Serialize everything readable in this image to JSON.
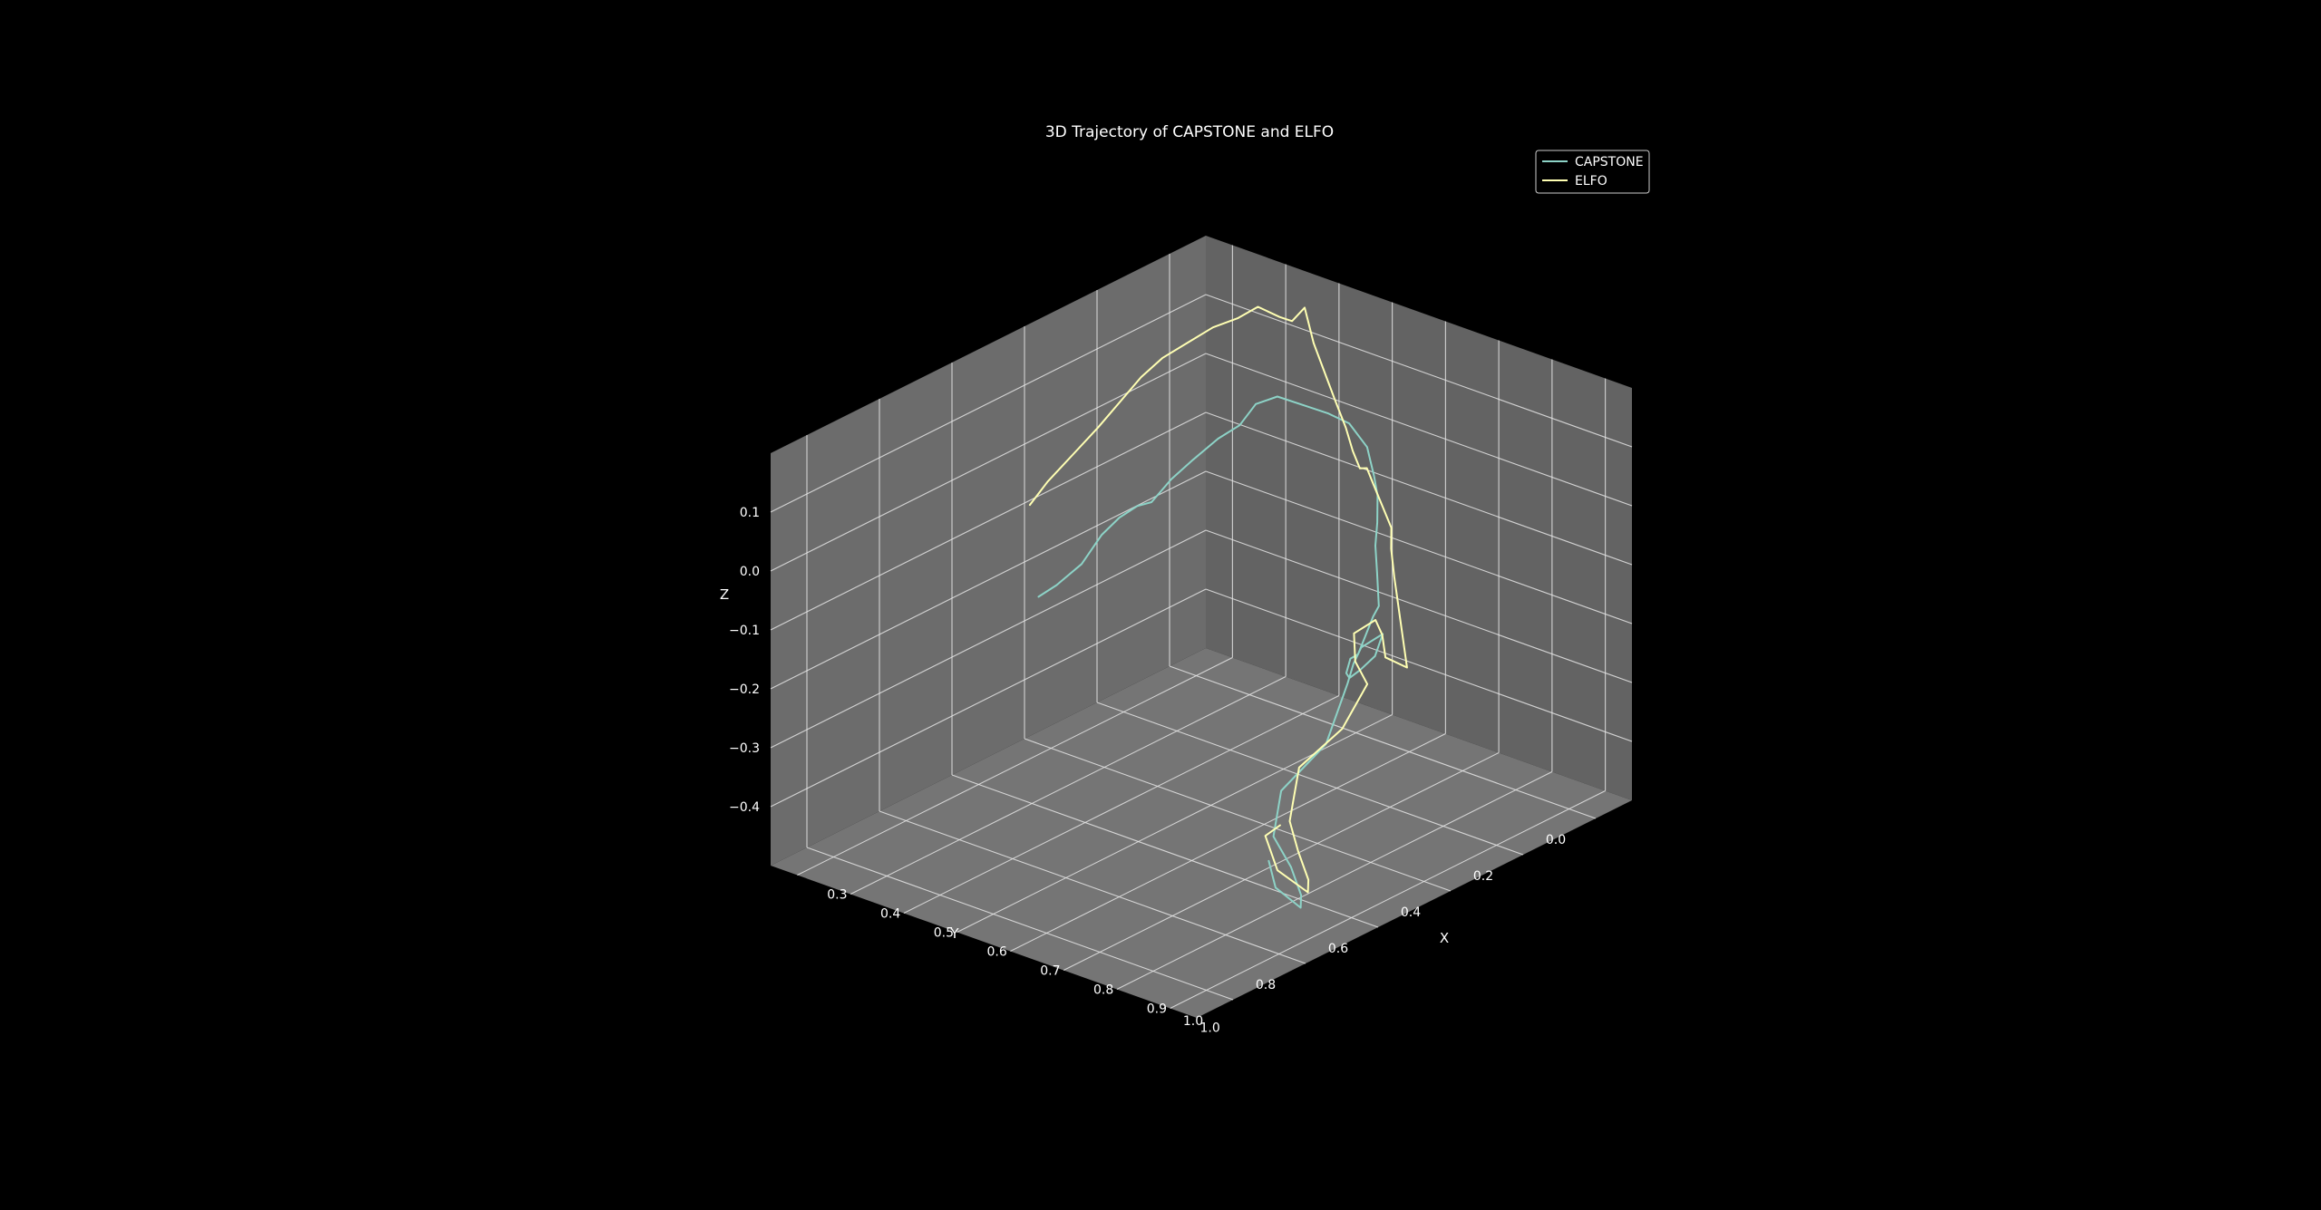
{
  "chart_data": {
    "type": "line",
    "title": "3D Trajectory of CAPSTONE and ELFO",
    "xlabel": "X",
    "ylabel": "Y",
    "zlabel": "Z",
    "xlim": [
      0.25,
      1.05
    ],
    "ylim": [
      -0.1,
      1.1
    ],
    "zlim": [
      -0.5,
      0.2
    ],
    "x_ticks": [
      "0.3",
      "0.4",
      "0.5",
      "0.6",
      "0.7",
      "0.8",
      "0.9",
      "1.0"
    ],
    "y_ticks": [
      "0.0",
      "0.2",
      "0.4",
      "0.6",
      "0.8",
      "1.0"
    ],
    "z_ticks": [
      "0.1",
      "0.0",
      "−0.1",
      "−0.2",
      "−0.3",
      "−0.4"
    ],
    "grid": true,
    "legend_position": "top-right",
    "background": "#000000",
    "pane_color": "#7f7f7f",
    "series": [
      {
        "name": "CAPSTONE",
        "color": "#8dd3c7",
        "points": [
          [
            0.29,
            0.42,
            -0.24
          ],
          [
            0.31,
            0.4,
            -0.22
          ],
          [
            0.33,
            0.36,
            -0.19
          ],
          [
            0.34,
            0.32,
            -0.15
          ],
          [
            0.36,
            0.3,
            -0.12
          ],
          [
            0.38,
            0.28,
            -0.1
          ],
          [
            0.4,
            0.27,
            -0.09
          ],
          [
            0.41,
            0.23,
            -0.06
          ],
          [
            0.43,
            0.2,
            -0.03
          ],
          [
            0.45,
            0.16,
            0.0
          ],
          [
            0.47,
            0.13,
            0.02
          ],
          [
            0.48,
            0.1,
            0.05
          ],
          [
            0.5,
            0.07,
            0.06
          ],
          [
            0.52,
            0.03,
            0.04
          ],
          [
            0.54,
            -0.01,
            0.02
          ],
          [
            0.56,
            -0.04,
            0.0
          ],
          [
            0.58,
            -0.06,
            -0.04
          ],
          [
            0.6,
            -0.05,
            -0.08
          ],
          [
            0.62,
            -0.03,
            -0.1
          ],
          [
            0.64,
            0.0,
            -0.13
          ],
          [
            0.65,
            0.02,
            -0.16
          ],
          [
            0.66,
            0.03,
            -0.2
          ],
          [
            0.67,
            0.04,
            -0.25
          ],
          [
            0.7,
            0.1,
            -0.24
          ],
          [
            0.74,
            0.2,
            -0.26
          ],
          [
            0.78,
            0.28,
            -0.23
          ],
          [
            0.82,
            0.35,
            -0.22
          ],
          [
            0.86,
            0.4,
            -0.2
          ],
          [
            0.88,
            0.4,
            -0.18
          ],
          [
            0.84,
            0.3,
            -0.2
          ],
          [
            0.8,
            0.22,
            -0.2
          ],
          [
            0.78,
            0.25,
            -0.22
          ],
          [
            0.82,
            0.33,
            -0.21
          ],
          [
            0.87,
            0.42,
            -0.2
          ],
          [
            0.85,
            0.45,
            -0.3
          ],
          [
            0.8,
            0.5,
            -0.38
          ],
          [
            0.84,
            0.58,
            -0.42
          ],
          [
            0.9,
            0.62,
            -0.44
          ],
          [
            0.96,
            0.68,
            -0.45
          ],
          [
            1.0,
            0.74,
            -0.44
          ],
          [
            0.98,
            0.78,
            -0.4
          ],
          [
            0.94,
            0.74,
            -0.38
          ]
        ]
      },
      {
        "name": "ELFO",
        "color": "#ffffb3",
        "points": [
          [
            0.26,
            0.4,
            -0.1
          ],
          [
            0.28,
            0.38,
            -0.06
          ],
          [
            0.3,
            0.34,
            -0.02
          ],
          [
            0.32,
            0.3,
            0.02
          ],
          [
            0.34,
            0.27,
            0.06
          ],
          [
            0.36,
            0.24,
            0.1
          ],
          [
            0.38,
            0.21,
            0.13
          ],
          [
            0.4,
            0.17,
            0.15
          ],
          [
            0.42,
            0.13,
            0.17
          ],
          [
            0.44,
            0.09,
            0.18
          ],
          [
            0.45,
            0.05,
            0.19
          ],
          [
            0.47,
            0.02,
            0.17
          ],
          [
            0.48,
            0.0,
            0.16
          ],
          [
            0.49,
            -0.02,
            0.18
          ],
          [
            0.5,
            -0.03,
            0.12
          ],
          [
            0.51,
            -0.05,
            0.06
          ],
          [
            0.52,
            -0.06,
            0.02
          ],
          [
            0.54,
            -0.06,
            -0.02
          ],
          [
            0.56,
            -0.05,
            -0.05
          ],
          [
            0.58,
            -0.04,
            -0.07
          ],
          [
            0.6,
            -0.03,
            -0.06
          ],
          [
            0.62,
            -0.02,
            -0.08
          ],
          [
            0.65,
            0.0,
            -0.1
          ],
          [
            0.68,
            0.02,
            -0.12
          ],
          [
            0.7,
            0.05,
            -0.14
          ],
          [
            0.74,
            0.1,
            -0.16
          ],
          [
            0.78,
            0.15,
            -0.17
          ],
          [
            0.82,
            0.2,
            -0.18
          ],
          [
            0.86,
            0.25,
            -0.19
          ],
          [
            0.9,
            0.3,
            -0.2
          ],
          [
            0.88,
            0.33,
            -0.18
          ],
          [
            0.84,
            0.28,
            -0.17
          ],
          [
            0.8,
            0.24,
            -0.17
          ],
          [
            0.78,
            0.27,
            -0.19
          ],
          [
            0.83,
            0.34,
            -0.2
          ],
          [
            0.88,
            0.38,
            -0.21
          ],
          [
            0.86,
            0.42,
            -0.28
          ],
          [
            0.82,
            0.48,
            -0.34
          ],
          [
            0.85,
            0.55,
            -0.4
          ],
          [
            0.9,
            0.6,
            -0.42
          ],
          [
            0.96,
            0.66,
            -0.43
          ],
          [
            1.0,
            0.72,
            -0.42
          ],
          [
            0.97,
            0.76,
            -0.38
          ],
          [
            0.92,
            0.72,
            -0.35
          ],
          [
            0.9,
            0.65,
            -0.36
          ]
        ]
      }
    ]
  }
}
